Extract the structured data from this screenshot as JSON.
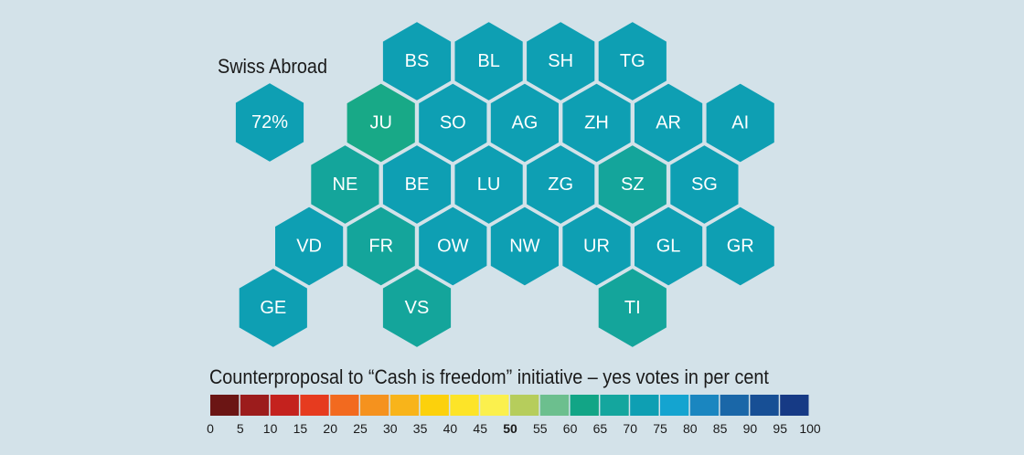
{
  "abroad": {
    "title": "Swiss Abroad",
    "value": 72,
    "label": "72%"
  },
  "legend": {
    "title": "Counterproposal to “Cash is freedom” initiative – yes votes in per cent",
    "ticks": [
      "0",
      "5",
      "10",
      "15",
      "20",
      "25",
      "30",
      "35",
      "40",
      "45",
      "50",
      "55",
      "60",
      "65",
      "70",
      "75",
      "80",
      "85",
      "90",
      "95",
      "100"
    ],
    "bold_tick": "50",
    "colors": [
      "#6b1514",
      "#9c1c1c",
      "#c4221e",
      "#e63b1f",
      "#f26a1f",
      "#f5921e",
      "#f8b41a",
      "#fcd10c",
      "#fde428",
      "#fbf04d",
      "#b6cd5c",
      "#6cbf8e",
      "#12a586",
      "#14a69e",
      "#0e9fb3",
      "#14a4d0",
      "#1a86c0",
      "#1a67a8",
      "#174f95",
      "#163a85"
    ]
  },
  "cantons": [
    {
      "code": "BS",
      "value": 70,
      "color": "#0e9fb3"
    },
    {
      "code": "BL",
      "value": 70,
      "color": "#0e9fb3"
    },
    {
      "code": "SH",
      "value": 70,
      "color": "#0e9fb3"
    },
    {
      "code": "TG",
      "value": 70,
      "color": "#0e9fb3"
    },
    {
      "code": "JU",
      "value": 62,
      "color": "#18a987"
    },
    {
      "code": "SO",
      "value": 70,
      "color": "#0e9fb3"
    },
    {
      "code": "AG",
      "value": 70,
      "color": "#0e9fb3"
    },
    {
      "code": "ZH",
      "value": 70,
      "color": "#0e9fb3"
    },
    {
      "code": "AR",
      "value": 70,
      "color": "#0e9fb3"
    },
    {
      "code": "AI",
      "value": 70,
      "color": "#0e9fb3"
    },
    {
      "code": "NE",
      "value": 67,
      "color": "#14a59b"
    },
    {
      "code": "BE",
      "value": 70,
      "color": "#0e9fb3"
    },
    {
      "code": "LU",
      "value": 70,
      "color": "#0e9fb3"
    },
    {
      "code": "ZG",
      "value": 70,
      "color": "#0e9fb3"
    },
    {
      "code": "SZ",
      "value": 67,
      "color": "#14a59b"
    },
    {
      "code": "SG",
      "value": 70,
      "color": "#0e9fb3"
    },
    {
      "code": "VD",
      "value": 70,
      "color": "#0e9fb3"
    },
    {
      "code": "FR",
      "value": 67,
      "color": "#14a59b"
    },
    {
      "code": "OW",
      "value": 70,
      "color": "#0e9fb3"
    },
    {
      "code": "NW",
      "value": 70,
      "color": "#0e9fb3"
    },
    {
      "code": "UR",
      "value": 70,
      "color": "#0e9fb3"
    },
    {
      "code": "GL",
      "value": 70,
      "color": "#0e9fb3"
    },
    {
      "code": "GR",
      "value": 70,
      "color": "#0e9fb3"
    },
    {
      "code": "GE",
      "value": 70,
      "color": "#0e9fb3"
    },
    {
      "code": "VS",
      "value": 67,
      "color": "#14a59b"
    },
    {
      "code": "TI",
      "value": 67,
      "color": "#14a59b"
    }
  ],
  "colors": {
    "background": "#d3e2e9",
    "hex_stroke": "#d3e2e9",
    "abroad_fill": "#0e9fb3"
  }
}
